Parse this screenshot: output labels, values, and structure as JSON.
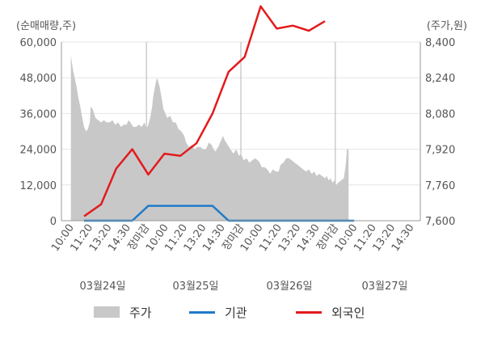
{
  "chart_data": {
    "type": "line",
    "unit_left": "(순매매량,주)",
    "unit_right": "(주가,원)",
    "left_axis": {
      "ticks": [
        "60,000",
        "48,000",
        "36,000",
        "24,000",
        "12,000",
        "0"
      ],
      "min": 0,
      "max": 60000
    },
    "right_axis": {
      "ticks": [
        "8,400",
        "8,240",
        "8,080",
        "7,920",
        "7,760",
        "7,600"
      ],
      "min": 7600,
      "max": 8400
    },
    "x_tick_labels": [
      "10:00",
      "11:20",
      "13:20",
      "14:30",
      "장마감",
      "10:00",
      "11:20",
      "13:20",
      "14:30",
      "장마감",
      "10:00",
      "11:20",
      "13:20",
      "14:30",
      "장마감",
      "10:00",
      "11:20",
      "13:20",
      "14:30"
    ],
    "highlight_label": "장마감",
    "dates": [
      "03월24일",
      "03월25일",
      "03월26일",
      "03월27일"
    ],
    "legend": [
      {
        "label": "주가",
        "color": "#c8c8c8"
      },
      {
        "label": "기관",
        "color": "#1f7ac8"
      },
      {
        "label": "외국인",
        "color": "#e31a1c"
      }
    ],
    "series": [
      {
        "name": "주가",
        "axis": "right",
        "style": "area",
        "color": "#c8c8c8",
        "points": [
          [
            0,
            8340
          ],
          [
            0.05,
            8310
          ],
          [
            0.12,
            8270
          ],
          [
            0.2,
            8240
          ],
          [
            0.3,
            8200
          ],
          [
            0.4,
            8150
          ],
          [
            0.5,
            8110
          ],
          [
            0.6,
            8060
          ],
          [
            0.7,
            8020
          ],
          [
            0.8,
            8000
          ],
          [
            0.9,
            8010
          ],
          [
            1.0,
            8040
          ],
          [
            1.05,
            8110
          ],
          [
            1.15,
            8100
          ],
          [
            1.3,
            8060
          ],
          [
            1.45,
            8050
          ],
          [
            1.6,
            8040
          ],
          [
            1.75,
            8050
          ],
          [
            1.9,
            8040
          ],
          [
            2.05,
            8040
          ],
          [
            2.2,
            8050
          ],
          [
            2.35,
            8030
          ],
          [
            2.5,
            8040
          ],
          [
            2.65,
            8020
          ],
          [
            2.8,
            8030
          ],
          [
            2.95,
            8030
          ],
          [
            3.05,
            8050
          ],
          [
            3.15,
            8040
          ],
          [
            3.3,
            8020
          ],
          [
            3.45,
            8020
          ],
          [
            3.6,
            8030
          ],
          [
            3.75,
            8020
          ],
          [
            3.9,
            8040
          ],
          [
            4.0,
            8010
          ],
          [
            4.1,
            8030
          ],
          [
            4.2,
            8060
          ],
          [
            4.3,
            8110
          ],
          [
            4.35,
            8150
          ],
          [
            4.45,
            8200
          ],
          [
            4.55,
            8240
          ],
          [
            4.6,
            8230
          ],
          [
            4.7,
            8200
          ],
          [
            4.8,
            8150
          ],
          [
            4.9,
            8100
          ],
          [
            5.0,
            8080
          ],
          [
            5.1,
            8060
          ],
          [
            5.25,
            8070
          ],
          [
            5.4,
            8040
          ],
          [
            5.55,
            8040
          ],
          [
            5.7,
            8010
          ],
          [
            5.85,
            8000
          ],
          [
            6.0,
            7980
          ],
          [
            6.1,
            7950
          ],
          [
            6.25,
            7930
          ],
          [
            6.4,
            7940
          ],
          [
            6.55,
            7920
          ],
          [
            6.7,
            7930
          ],
          [
            6.85,
            7930
          ],
          [
            7.0,
            7920
          ],
          [
            7.15,
            7920
          ],
          [
            7.3,
            7950
          ],
          [
            7.45,
            7940
          ],
          [
            7.55,
            7920
          ],
          [
            7.65,
            7910
          ],
          [
            7.8,
            7930
          ],
          [
            7.95,
            7960
          ],
          [
            8.05,
            7980
          ],
          [
            8.15,
            7960
          ],
          [
            8.3,
            7940
          ],
          [
            8.45,
            7920
          ],
          [
            8.6,
            7900
          ],
          [
            8.75,
            7920
          ],
          [
            8.9,
            7890
          ],
          [
            9.0,
            7900
          ],
          [
            9.15,
            7870
          ],
          [
            9.3,
            7880
          ],
          [
            9.45,
            7860
          ],
          [
            9.6,
            7870
          ],
          [
            9.75,
            7880
          ],
          [
            9.9,
            7870
          ],
          [
            10.0,
            7860
          ],
          [
            10.1,
            7840
          ],
          [
            10.25,
            7840
          ],
          [
            10.4,
            7830
          ],
          [
            10.55,
            7810
          ],
          [
            10.7,
            7830
          ],
          [
            10.85,
            7820
          ],
          [
            11.0,
            7820
          ],
          [
            11.1,
            7850
          ],
          [
            11.25,
            7860
          ],
          [
            11.4,
            7880
          ],
          [
            11.55,
            7880
          ],
          [
            11.7,
            7870
          ],
          [
            11.85,
            7860
          ],
          [
            12.0,
            7850
          ],
          [
            12.15,
            7840
          ],
          [
            12.3,
            7830
          ],
          [
            12.45,
            7820
          ],
          [
            12.6,
            7830
          ],
          [
            12.75,
            7810
          ],
          [
            12.9,
            7820
          ],
          [
            13.0,
            7800
          ],
          [
            13.15,
            7810
          ],
          [
            13.3,
            7800
          ],
          [
            13.45,
            7790
          ],
          [
            13.55,
            7800
          ],
          [
            13.65,
            7780
          ],
          [
            13.75,
            7790
          ],
          [
            13.85,
            7770
          ],
          [
            13.95,
            7780
          ],
          [
            14.05,
            7760
          ],
          [
            14.15,
            7770
          ],
          [
            14.3,
            7780
          ],
          [
            14.45,
            7790
          ],
          [
            14.55,
            7850
          ],
          [
            14.62,
            7920
          ],
          [
            14.7,
            7920
          ]
        ]
      },
      {
        "name": "기관",
        "axis": "left",
        "style": "line",
        "color": "#1f7ac8",
        "points": [
          [
            0.7,
            0
          ],
          [
            1.6,
            0
          ],
          [
            2.4,
            0
          ],
          [
            3.25,
            0
          ],
          [
            4.1,
            5000
          ],
          [
            4.95,
            5000
          ],
          [
            5.8,
            5000
          ],
          [
            6.65,
            5000
          ],
          [
            7.5,
            5000
          ],
          [
            8.35,
            0
          ],
          [
            9.2,
            0
          ],
          [
            10.05,
            0
          ],
          [
            10.9,
            0
          ],
          [
            11.75,
            0
          ],
          [
            12.6,
            0
          ],
          [
            13.45,
            0
          ],
          [
            14.3,
            0
          ],
          [
            15.0,
            0
          ]
        ]
      },
      {
        "name": "외국인",
        "axis": "left",
        "style": "line",
        "color": "#e31a1c",
        "points": [
          [
            0.7,
            1500
          ],
          [
            1.6,
            5500
          ],
          [
            2.4,
            17500
          ],
          [
            3.25,
            24000
          ],
          [
            4.1,
            15500
          ],
          [
            4.95,
            22500
          ],
          [
            5.8,
            21800
          ],
          [
            6.65,
            26000
          ],
          [
            7.5,
            36000
          ],
          [
            8.35,
            50000
          ],
          [
            9.2,
            55000
          ],
          [
            10.05,
            72000
          ],
          [
            10.9,
            64500
          ],
          [
            11.75,
            65500
          ],
          [
            12.6,
            63800
          ],
          [
            13.45,
            67000
          ]
        ]
      }
    ]
  }
}
